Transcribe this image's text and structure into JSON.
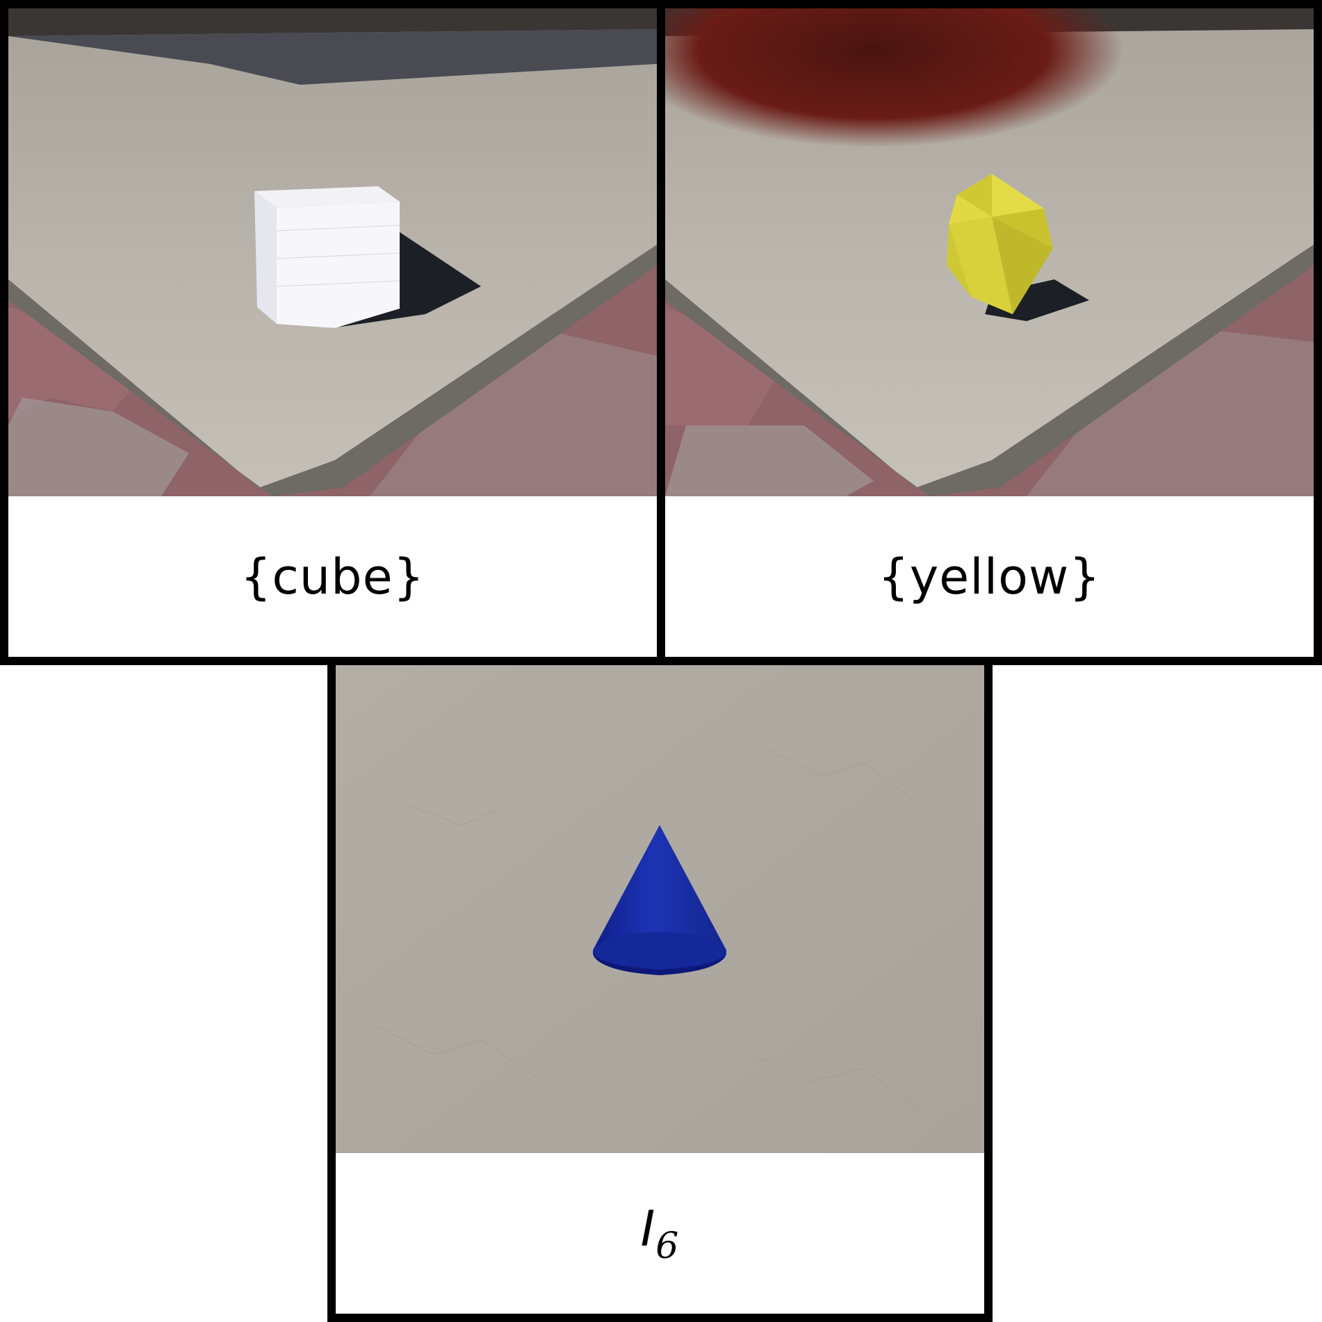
{
  "panels": [
    {
      "caption": "{cube}",
      "object_color": "#ffffff"
    },
    {
      "caption": "{yellow}",
      "object_color": "#d9d23c"
    },
    {
      "caption_base": "I",
      "caption_sub": "6",
      "object_color": "#1a2fa8"
    }
  ],
  "colors": {
    "border": "#000000",
    "concrete": "#b4b0a8",
    "pavers": "#8a5f63"
  }
}
